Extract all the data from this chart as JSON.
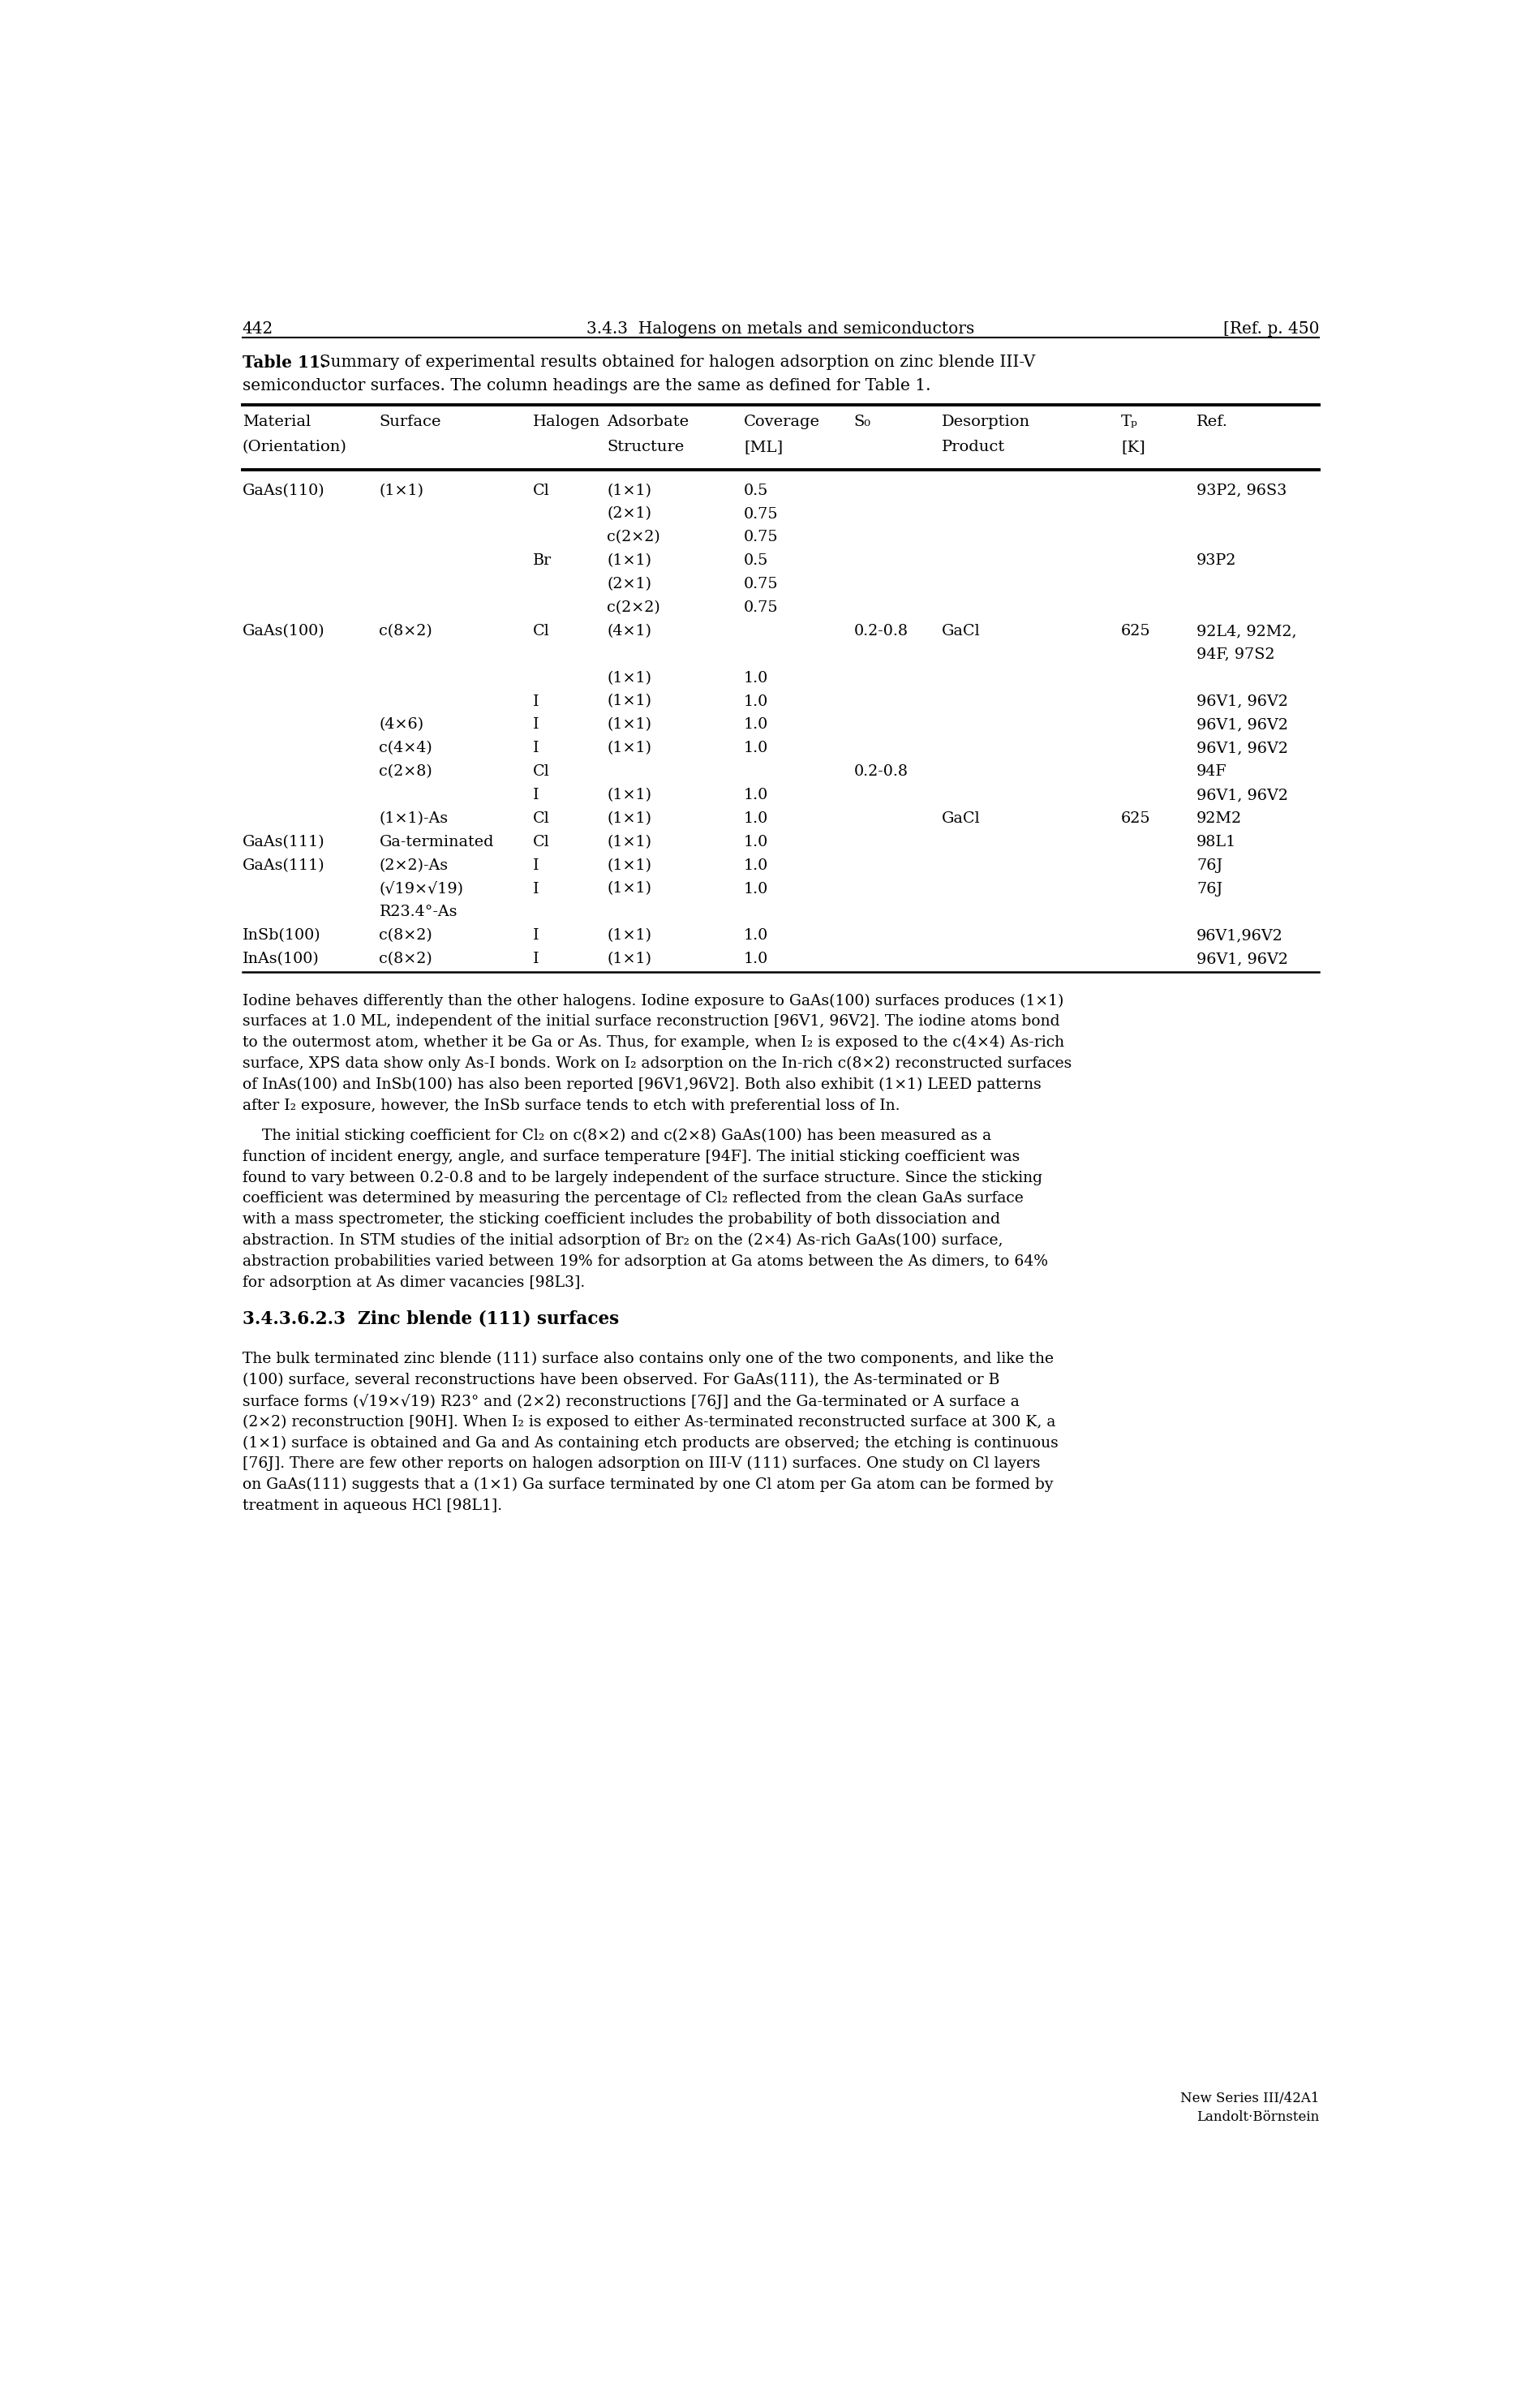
{
  "page_number": "442",
  "header_center": "3.4.3  Halogens on metals and semiconductors",
  "header_right": "[Ref. p. 450",
  "caption_bold": "Table 11.",
  "caption_rest": "  Summary of experimental results obtained for halogen adsorption on zinc blende III-V",
  "caption_line2": "semiconductor surfaces. The column headings are the same as defined for Table 1.",
  "col_h1": [
    "Material",
    "Surface",
    "Halogen",
    "Adsorbate",
    "Coverage",
    "S₀",
    "Desorption",
    "Tₚ",
    "Ref."
  ],
  "col_h2": [
    "(Orientation)",
    "",
    "",
    "Structure",
    "[ML]",
    "",
    "Product",
    "[K]",
    ""
  ],
  "table_rows": [
    [
      "GaAs(110)",
      "(1×1)",
      "Cl",
      "(1×1)",
      "0.5",
      "",
      "",
      "",
      "93P2, 96S3"
    ],
    [
      "",
      "",
      "",
      "(2×1)",
      "0.75",
      "",
      "",
      "",
      ""
    ],
    [
      "",
      "",
      "",
      "c(2×2)",
      "0.75",
      "",
      "",
      "",
      ""
    ],
    [
      "",
      "",
      "Br",
      "(1×1)",
      "0.5",
      "",
      "",
      "",
      "93P2"
    ],
    [
      "",
      "",
      "",
      "(2×1)",
      "0.75",
      "",
      "",
      "",
      ""
    ],
    [
      "",
      "",
      "",
      "c(2×2)",
      "0.75",
      "",
      "",
      "",
      ""
    ],
    [
      "GaAs(100)",
      "c(8×2)",
      "Cl",
      "(4×1)",
      "",
      "0.2-0.8",
      "GaCl",
      "625",
      "92L4, 92M2,"
    ],
    [
      "",
      "",
      "",
      "",
      "",
      "",
      "",
      "",
      "94F, 97S2"
    ],
    [
      "",
      "",
      "",
      "(1×1)",
      "1.0",
      "",
      "",
      "",
      ""
    ],
    [
      "",
      "",
      "I",
      "(1×1)",
      "1.0",
      "",
      "",
      "",
      "96V1, 96V2"
    ],
    [
      "",
      "(4×6)",
      "I",
      "(1×1)",
      "1.0",
      "",
      "",
      "",
      "96V1, 96V2"
    ],
    [
      "",
      "c(4×4)",
      "I",
      "(1×1)",
      "1.0",
      "",
      "",
      "",
      "96V1, 96V2"
    ],
    [
      "",
      "c(2×8)",
      "Cl",
      "",
      "",
      "0.2-0.8",
      "",
      "",
      "94F"
    ],
    [
      "",
      "",
      "I",
      "(1×1)",
      "1.0",
      "",
      "",
      "",
      "96V1, 96V2"
    ],
    [
      "",
      "(1×1)-As",
      "Cl",
      "(1×1)",
      "1.0",
      "",
      "GaCl",
      "625",
      "92M2"
    ],
    [
      "GaAs(111)",
      "Ga-terminated",
      "Cl",
      "(1×1)",
      "1.0",
      "",
      "",
      "",
      "98L1"
    ],
    [
      "GaAs(111)",
      "(2×2)-As",
      "I",
      "(1×1)",
      "1.0",
      "",
      "",
      "",
      "76J"
    ],
    [
      "",
      "(√19×√19)",
      "I",
      "(1×1)",
      "1.0",
      "",
      "",
      "",
      "76J"
    ],
    [
      "",
      "R23.4°-As",
      "",
      "",
      "",
      "",
      "",
      "",
      ""
    ],
    [
      "InSb(100)",
      "c(8×2)",
      "I",
      "(1×1)",
      "1.0",
      "",
      "",
      "",
      "96V1,96V2"
    ],
    [
      "InAs(100)",
      "c(8×2)",
      "I",
      "(1×1)",
      "1.0",
      "",
      "",
      "",
      "96V1, 96V2"
    ]
  ],
  "body_para1": [
    "Iodine behaves differently than the other halogens. Iodine exposure to GaAs(100) surfaces produces (1×1)",
    "surfaces at 1.0 ML, independent of the initial surface reconstruction [96V1, 96V2]. The iodine atoms bond",
    "to the outermost atom, whether it be Ga or As. Thus, for example, when I₂ is exposed to the c(4×4) As-rich",
    "surface, XPS data show only As-I bonds. Work on I₂ adsorption on the In-rich c(8×2) reconstructed surfaces",
    "of InAs(100) and InSb(100) has also been reported [96V1,96V2]. Both also exhibit (1×1) LEED patterns",
    "after I₂ exposure, however, the InSb surface tends to etch with preferential loss of In."
  ],
  "body_para2": [
    "    The initial sticking coefficient for Cl₂ on c(8×2) and c(2×8) GaAs(100) has been measured as a",
    "function of incident energy, angle, and surface temperature [94F]. The initial sticking coefficient was",
    "found to vary between 0.2-0.8 and to be largely independent of the surface structure. Since the sticking",
    "coefficient was determined by measuring the percentage of Cl₂ reflected from the clean GaAs surface",
    "with a mass spectrometer, the sticking coefficient includes the probability of both dissociation and",
    "abstraction. In STM studies of the initial adsorption of Br₂ on the (2×4) As-rich GaAs(100) surface,",
    "abstraction probabilities varied between 19% for adsorption at Ga atoms between the As dimers, to 64%",
    "for adsorption at As dimer vacancies [98L3]."
  ],
  "section_title": "3.4.3.6.2.3  Zinc blende (111) surfaces",
  "section_para": [
    "The bulk terminated zinc blende (111) surface also contains only one of the two components, and like the",
    "(100) surface, several reconstructions have been observed. For GaAs(111), the As-terminated or B",
    "surface forms (√19×√19) R23° and (2×2) reconstructions [76J] and the Ga-terminated or A surface a",
    "(2×2) reconstruction [90H]. When I₂ is exposed to either As-terminated reconstructed surface at 300 K, a",
    "(1×1) surface is obtained and Ga and As containing etch products are observed; the etching is continuous",
    "[76J]. There are few other reports on halogen adsorption on III-V (111) surfaces. One study on Cl layers",
    "on GaAs(111) suggests that a (1×1) Ga surface terminated by one Cl atom per Ga atom can be formed by",
    "treatment in aqueous HCl [98L1]."
  ],
  "footer_right1": "Landolt·Börnstein",
  "footer_right2": "New Series III/42A1"
}
